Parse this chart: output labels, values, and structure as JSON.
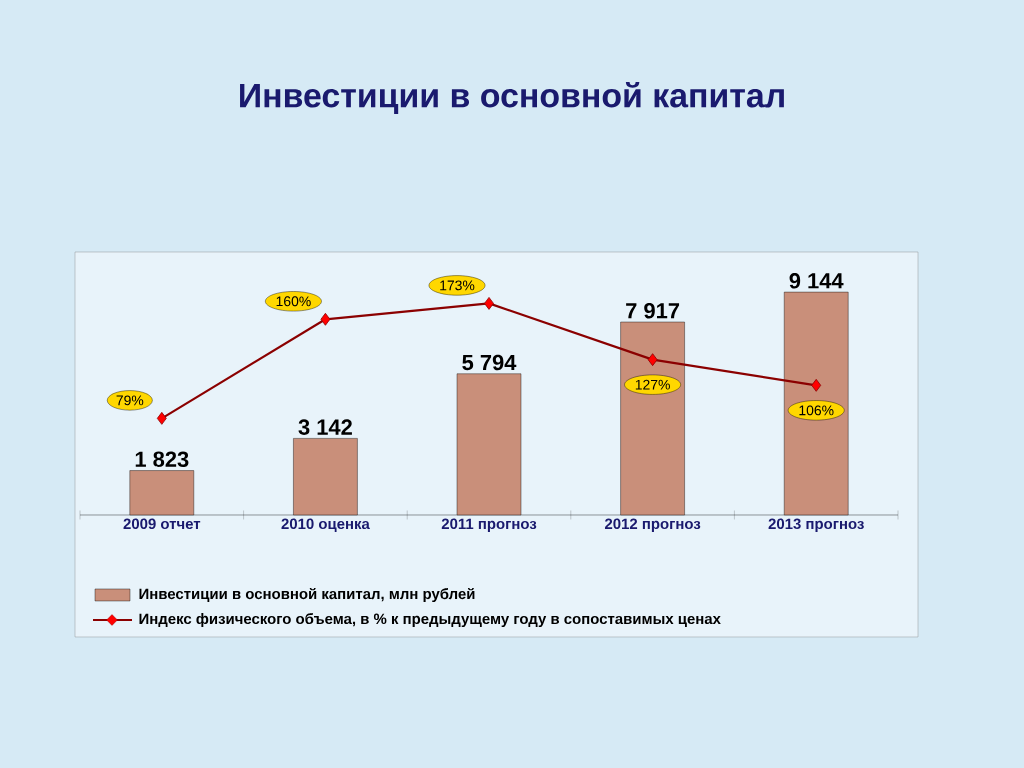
{
  "chart_data": {
    "type": "bar",
    "title": "Инвестиции в основной капитал",
    "categories": [
      "2009  отчет",
      "2010  оценка",
      "2011  прогноз",
      "2012  прогноз",
      "2013  прогноз"
    ],
    "legend": "bottom",
    "series": [
      {
        "name": "Инвестиции в основной капитал, млн рублей",
        "color": "#c98f7a",
        "values": [
          1823,
          3142,
          5794,
          7917,
          9144
        ],
        "value_labels": [
          "1 823",
          "3 142",
          "5 794",
          "7 917",
          "9 144"
        ]
      },
      {
        "name": "Индекс физического объема, в % к предыдущему году в сопоставимых ценах",
        "type": "line",
        "axis": "y2",
        "color": "#8b0000",
        "marker": "diamond",
        "values": [
          79,
          160,
          173,
          127,
          106
        ],
        "value_labels": [
          "79%",
          "160%",
          "173%",
          "127%",
          "106%"
        ]
      }
    ]
  }
}
